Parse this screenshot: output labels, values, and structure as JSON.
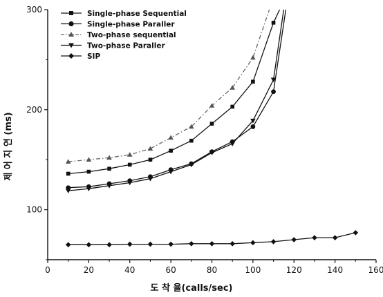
{
  "chart_data": {
    "type": "line",
    "xlabel": "도 착 율(calls/sec)",
    "ylabel": "제 어 지 연 (ms)",
    "xlim": [
      0,
      160
    ],
    "ylim": [
      50,
      300
    ],
    "xticks": [
      "0",
      "20",
      "40",
      "60",
      "80",
      "100",
      "120",
      "140",
      "160"
    ],
    "yticks": [
      "100",
      "200",
      "300"
    ],
    "legend_position": "top-left",
    "grid": false,
    "series": [
      {
        "name": "Single-phase Sequential",
        "marker": "square",
        "dash": "solid",
        "x": [
          10,
          20,
          30,
          40,
          50,
          60,
          70,
          80,
          90,
          100,
          110,
          113
        ],
        "y": [
          136,
          138,
          141,
          145,
          150,
          159,
          169,
          186,
          203,
          228,
          287,
          300
        ]
      },
      {
        "name": "Single-phase Paraller",
        "marker": "circle",
        "dash": "solid",
        "x": [
          10,
          20,
          30,
          40,
          50,
          60,
          70,
          80,
          90,
          100,
          110,
          116
        ],
        "y": [
          122,
          123,
          126,
          129,
          133,
          140,
          146,
          158,
          168,
          183,
          218,
          300
        ]
      },
      {
        "name": "Two-phase sequential",
        "marker": "triangle-up",
        "dash": "dashdot",
        "x": [
          10,
          20,
          30,
          40,
          50,
          60,
          70,
          80,
          90,
          100,
          108
        ],
        "y": [
          148,
          150,
          152,
          155,
          161,
          172,
          183,
          204,
          222,
          252,
          300
        ]
      },
      {
        "name": "Two-phase Paraller",
        "marker": "triangle-down",
        "dash": "solid",
        "x": [
          10,
          20,
          30,
          40,
          50,
          60,
          70,
          80,
          90,
          100,
          110,
          115
        ],
        "y": [
          119,
          121,
          124,
          127,
          131,
          138,
          145,
          157,
          166,
          189,
          230,
          300
        ]
      },
      {
        "name": "SIP",
        "marker": "diamond",
        "dash": "solid",
        "x": [
          10,
          20,
          30,
          40,
          50,
          60,
          70,
          80,
          90,
          100,
          110,
          120,
          130,
          140,
          150
        ],
        "y": [
          65,
          65,
          65,
          65.5,
          65.5,
          65.5,
          66,
          66,
          66,
          67,
          68,
          70,
          72,
          72,
          77
        ]
      }
    ]
  }
}
